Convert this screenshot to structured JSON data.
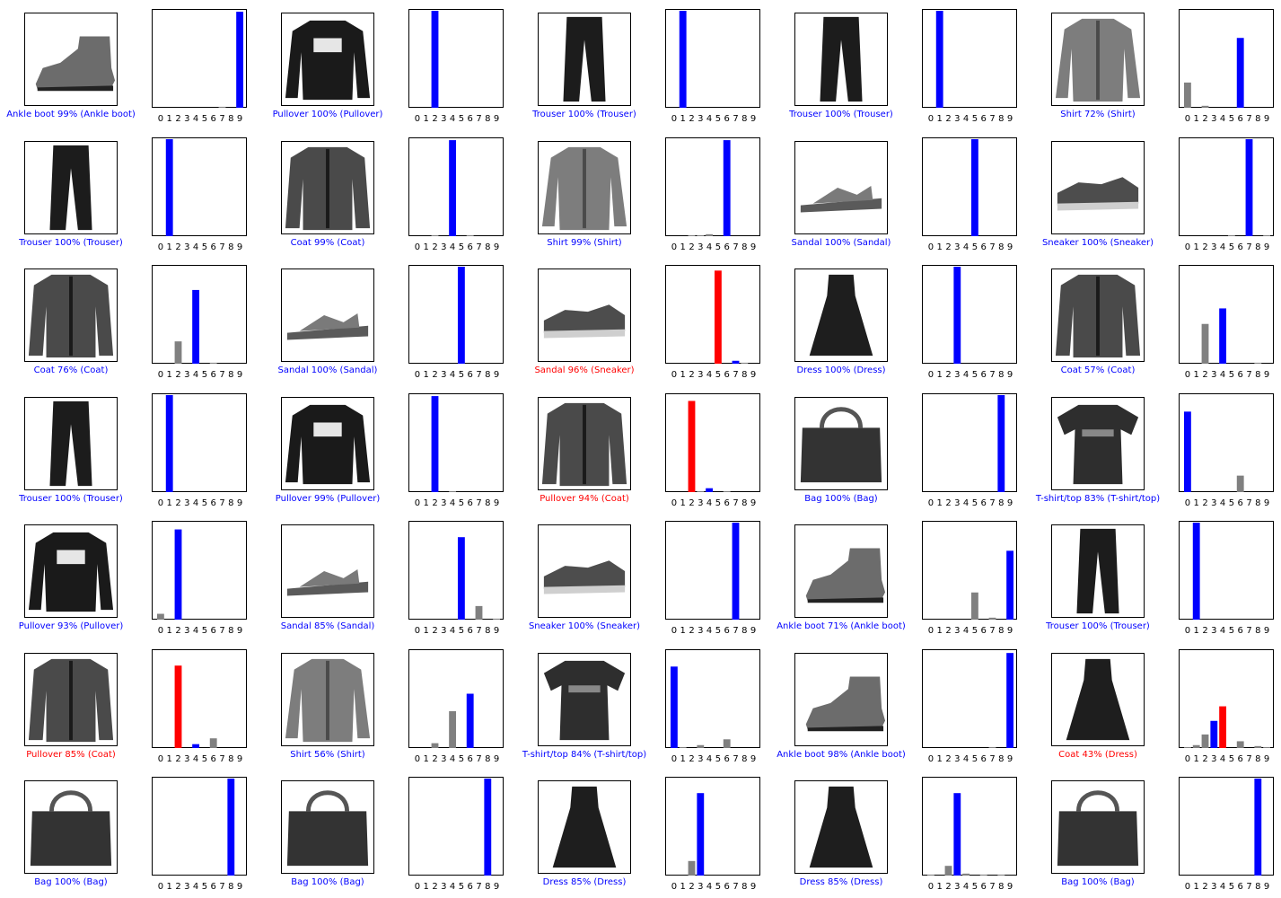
{
  "colors": {
    "correct": "#0000ff",
    "wrong": "#ff0000",
    "other": "#808080"
  },
  "tick_labels": [
    "0",
    "1",
    "2",
    "3",
    "4",
    "5",
    "6",
    "7",
    "8",
    "9"
  ],
  "chart_data": {
    "type": "bar",
    "categories": [
      "0",
      "1",
      "2",
      "3",
      "4",
      "5",
      "6",
      "7",
      "8",
      "9"
    ],
    "ylim": [
      0,
      1
    ],
    "grid": false,
    "panels": [
      {
        "caption": "Ankle boot 99% (Ankle boot)",
        "pred": 9,
        "true": 9,
        "correct": true,
        "icon": "ankle-boot-icon",
        "values": [
          0,
          0,
          0,
          0,
          0,
          0,
          0,
          0.01,
          0,
          0.99
        ]
      },
      {
        "caption": "Pullover 100% (Pullover)",
        "pred": 2,
        "true": 2,
        "correct": true,
        "icon": "pullover-icon",
        "values": [
          0,
          0,
          1,
          0,
          0,
          0,
          0,
          0,
          0,
          0
        ]
      },
      {
        "caption": "Trouser 100% (Trouser)",
        "pred": 1,
        "true": 1,
        "correct": true,
        "icon": "trouser-icon",
        "values": [
          0,
          1,
          0,
          0,
          0,
          0,
          0,
          0,
          0,
          0
        ]
      },
      {
        "caption": "Trouser 100% (Trouser)",
        "pred": 1,
        "true": 1,
        "correct": true,
        "icon": "trouser-icon",
        "values": [
          0,
          1,
          0,
          0,
          0,
          0,
          0,
          0,
          0,
          0
        ]
      },
      {
        "caption": "Shirt 72% (Shirt)",
        "pred": 6,
        "true": 6,
        "correct": true,
        "icon": "shirt-icon",
        "values": [
          0.26,
          0,
          0.02,
          0,
          0,
          0,
          0.72,
          0,
          0,
          0
        ]
      },
      {
        "caption": "Trouser 100% (Trouser)",
        "pred": 1,
        "true": 1,
        "correct": true,
        "icon": "trouser-icon",
        "values": [
          0,
          1,
          0,
          0,
          0,
          0,
          0,
          0,
          0,
          0
        ]
      },
      {
        "caption": "Coat 99% (Coat)",
        "pred": 4,
        "true": 4,
        "correct": true,
        "icon": "coat-icon",
        "values": [
          0,
          0,
          0.01,
          0,
          0.99,
          0,
          0.01,
          0,
          0,
          0
        ]
      },
      {
        "caption": "Shirt 99% (Shirt)",
        "pred": 6,
        "true": 6,
        "correct": true,
        "icon": "shirt-icon",
        "values": [
          0,
          0,
          0.01,
          0.01,
          0.02,
          0,
          0.99,
          0,
          0,
          0
        ]
      },
      {
        "caption": "Sandal 100% (Sandal)",
        "pred": 5,
        "true": 5,
        "correct": true,
        "icon": "sandal-icon",
        "values": [
          0,
          0,
          0,
          0,
          0,
          1,
          0,
          0,
          0,
          0
        ]
      },
      {
        "caption": "Sneaker 100% (Sneaker)",
        "pred": 7,
        "true": 7,
        "correct": true,
        "icon": "sneaker-icon",
        "values": [
          0,
          0,
          0,
          0,
          0,
          0.01,
          0,
          1,
          0,
          0.01
        ]
      },
      {
        "caption": "Coat 76% (Coat)",
        "pred": 4,
        "true": 4,
        "correct": true,
        "icon": "coat-icon",
        "values": [
          0,
          0,
          0.23,
          0,
          0.76,
          0,
          0.01,
          0,
          0,
          0
        ]
      },
      {
        "caption": "Sandal 100% (Sandal)",
        "pred": 5,
        "true": 5,
        "correct": true,
        "icon": "sandal-icon",
        "values": [
          0,
          0,
          0,
          0,
          0,
          1,
          0,
          0,
          0,
          0
        ]
      },
      {
        "caption": "Sandal 96% (Sneaker)",
        "pred": 5,
        "true": 7,
        "correct": false,
        "icon": "sneaker-icon",
        "values": [
          0,
          0,
          0,
          0,
          0,
          0.96,
          0,
          0.03,
          0.01,
          0
        ]
      },
      {
        "caption": "Dress 100% (Dress)",
        "pred": 3,
        "true": 3,
        "correct": true,
        "icon": "dress-icon",
        "values": [
          0,
          0,
          0,
          1,
          0,
          0,
          0,
          0,
          0,
          0
        ]
      },
      {
        "caption": "Coat 57% (Coat)",
        "pred": 4,
        "true": 4,
        "correct": true,
        "icon": "coat-icon",
        "values": [
          0,
          0,
          0.41,
          0,
          0.57,
          0,
          0,
          0,
          0.01,
          0
        ]
      },
      {
        "caption": "Trouser 100% (Trouser)",
        "pred": 1,
        "true": 1,
        "correct": true,
        "icon": "trouser-icon",
        "values": [
          0,
          1,
          0,
          0,
          0,
          0,
          0,
          0,
          0,
          0
        ]
      },
      {
        "caption": "Pullover 99% (Pullover)",
        "pred": 2,
        "true": 2,
        "correct": true,
        "icon": "pullover-icon",
        "values": [
          0,
          0,
          0.99,
          0,
          0.01,
          0,
          0,
          0,
          0,
          0
        ]
      },
      {
        "caption": "Pullover 94% (Coat)",
        "pred": 2,
        "true": 4,
        "correct": false,
        "icon": "coat-icon",
        "values": [
          0,
          0,
          0.94,
          0.01,
          0.04,
          0,
          0.01,
          0,
          0,
          0
        ]
      },
      {
        "caption": "Bag 100% (Bag)",
        "pred": 8,
        "true": 8,
        "correct": true,
        "icon": "bag-icon",
        "values": [
          0,
          0,
          0,
          0,
          0,
          0,
          0,
          0,
          1,
          0
        ]
      },
      {
        "caption": "T-shirt/top 83% (T-shirt/top)",
        "pred": 0,
        "true": 0,
        "correct": true,
        "icon": "t-shirt-icon",
        "values": [
          0.83,
          0,
          0,
          0,
          0,
          0,
          0.17,
          0,
          0,
          0
        ]
      },
      {
        "caption": "Pullover 93% (Pullover)",
        "pred": 2,
        "true": 2,
        "correct": true,
        "icon": "pullover-icon",
        "values": [
          0.06,
          0,
          0.93,
          0,
          0,
          0,
          0,
          0,
          0,
          0
        ]
      },
      {
        "caption": "Sandal 85% (Sandal)",
        "pred": 5,
        "true": 5,
        "correct": true,
        "icon": "sandal-icon",
        "values": [
          0,
          0,
          0,
          0,
          0,
          0.85,
          0,
          0.14,
          0,
          0.01
        ]
      },
      {
        "caption": "Sneaker 100% (Sneaker)",
        "pred": 7,
        "true": 7,
        "correct": true,
        "icon": "sneaker-icon",
        "values": [
          0,
          0,
          0,
          0,
          0,
          0,
          0,
          1,
          0,
          0
        ]
      },
      {
        "caption": "Ankle boot 71% (Ankle boot)",
        "pred": 9,
        "true": 9,
        "correct": true,
        "icon": "ankle-boot-icon",
        "values": [
          0,
          0,
          0,
          0,
          0,
          0.28,
          0,
          0.02,
          0,
          0.71
        ]
      },
      {
        "caption": "Trouser 100% (Trouser)",
        "pred": 1,
        "true": 1,
        "correct": true,
        "icon": "trouser-icon",
        "values": [
          0,
          1,
          0,
          0,
          0,
          0,
          0,
          0,
          0,
          0
        ]
      },
      {
        "caption": "Pullover 85% (Coat)",
        "pred": 2,
        "true": 4,
        "correct": false,
        "icon": "coat-icon",
        "values": [
          0,
          0,
          0.85,
          0,
          0.04,
          0,
          0.1,
          0,
          0,
          0
        ]
      },
      {
        "caption": "Shirt 56% (Shirt)",
        "pred": 6,
        "true": 6,
        "correct": true,
        "icon": "shirt-icon",
        "values": [
          0,
          0,
          0.05,
          0,
          0.38,
          0,
          0.56,
          0,
          0,
          0
        ]
      },
      {
        "caption": "T-shirt/top 84% (T-shirt/top)",
        "pred": 0,
        "true": 0,
        "correct": true,
        "icon": "t-shirt-icon",
        "values": [
          0.84,
          0.01,
          0,
          0.03,
          0,
          0,
          0.09,
          0,
          0,
          0
        ]
      },
      {
        "caption": "Ankle boot 98% (Ankle boot)",
        "pred": 9,
        "true": 9,
        "correct": true,
        "icon": "ankle-boot-icon",
        "values": [
          0,
          0,
          0,
          0,
          0,
          0,
          0,
          0.01,
          0,
          0.98
        ]
      },
      {
        "caption": "Coat 43% (Dress)",
        "pred": 4,
        "true": 3,
        "correct": false,
        "icon": "dress-icon",
        "values": [
          0.01,
          0.03,
          0.14,
          0.28,
          0.43,
          0,
          0.07,
          0,
          0.02,
          0.01
        ]
      },
      {
        "caption": "Bag 100% (Bag)",
        "pred": 8,
        "true": 8,
        "correct": true,
        "icon": "bag-icon",
        "values": [
          0,
          0,
          0,
          0,
          0,
          0,
          0,
          0,
          1,
          0
        ]
      },
      {
        "caption": "Bag 100% (Bag)",
        "pred": 8,
        "true": 8,
        "correct": true,
        "icon": "bag-icon",
        "values": [
          0,
          0,
          0,
          0,
          0,
          0,
          0,
          0,
          1,
          0
        ]
      },
      {
        "caption": "Dress 85% (Dress)",
        "pred": 3,
        "true": 3,
        "correct": true,
        "icon": "dress-icon",
        "values": [
          0,
          0,
          0.15,
          0.85,
          0,
          0,
          0,
          0,
          0,
          0
        ]
      },
      {
        "caption": "Dress 85% (Dress)",
        "pred": 3,
        "true": 3,
        "correct": true,
        "icon": "dress-icon",
        "values": [
          0.01,
          0,
          0.1,
          0.85,
          0.02,
          0,
          0.01,
          0,
          0.01,
          0
        ]
      },
      {
        "caption": "Bag 100% (Bag)",
        "pred": 8,
        "true": 8,
        "correct": true,
        "icon": "bag-icon",
        "values": [
          0,
          0,
          0,
          0,
          0,
          0,
          0,
          0,
          1,
          0
        ]
      }
    ]
  }
}
